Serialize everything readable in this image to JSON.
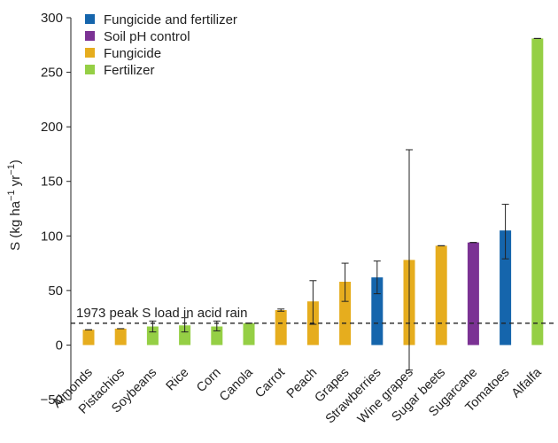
{
  "chart_data": {
    "type": "bar",
    "title": "",
    "xlabel": "",
    "ylabel": "S (kg ha−1 yr−1)",
    "ylabel_parts": {
      "base": "S (kg ha",
      "exp1": "−1",
      "mid": " yr",
      "exp2": "−1",
      "end": ")"
    },
    "ylim": [
      -50,
      300
    ],
    "yticks": [
      -50,
      0,
      50,
      100,
      150,
      200,
      250,
      300
    ],
    "categories": [
      "Almonds",
      "Pistachios",
      "Soybeans",
      "Rice",
      "Corn",
      "Canola",
      "Carrot",
      "Peach",
      "Grapes",
      "Strawberries",
      "Wine grapes",
      "Sugar beets",
      "Sugarcane",
      "Tomatoes",
      "Alfalfa"
    ],
    "values": [
      14,
      15,
      17,
      18,
      17,
      20,
      32,
      40,
      58,
      62,
      78,
      91,
      94,
      105,
      281
    ],
    "errors": [
      [
        14,
        14
      ],
      [
        15,
        15
      ],
      [
        12,
        22
      ],
      [
        12,
        25
      ],
      [
        13,
        22
      ],
      [
        20,
        20
      ],
      [
        31,
        33
      ],
      [
        19,
        59
      ],
      [
        40,
        75
      ],
      [
        47,
        77
      ],
      [
        -23,
        179
      ],
      [
        91,
        91
      ],
      [
        94,
        94
      ],
      [
        79,
        129
      ],
      [
        281,
        281
      ]
    ],
    "groups": [
      "Fungicide",
      "Fungicide",
      "Fertilizer",
      "Fertilizer",
      "Fertilizer",
      "Fertilizer",
      "Fungicide",
      "Fungicide",
      "Fungicide",
      "Fungicide and fertilizer",
      "Fungicide",
      "Fungicide",
      "Soil pH control",
      "Fungicide and fertilizer",
      "Fertilizer"
    ],
    "legend": [
      {
        "label": "Fungicide and fertilizer",
        "color": "#1565ac"
      },
      {
        "label": "Soil pH control",
        "color": "#7b3294"
      },
      {
        "label": "Fungicide",
        "color": "#e6ad1e"
      },
      {
        "label": "Fertilizer",
        "color": "#95cf45"
      }
    ],
    "legend_position": "top-left",
    "reference_line": {
      "value": 20,
      "label": "1973 peak S load in acid rain",
      "style": "dashed"
    },
    "grid": false
  }
}
